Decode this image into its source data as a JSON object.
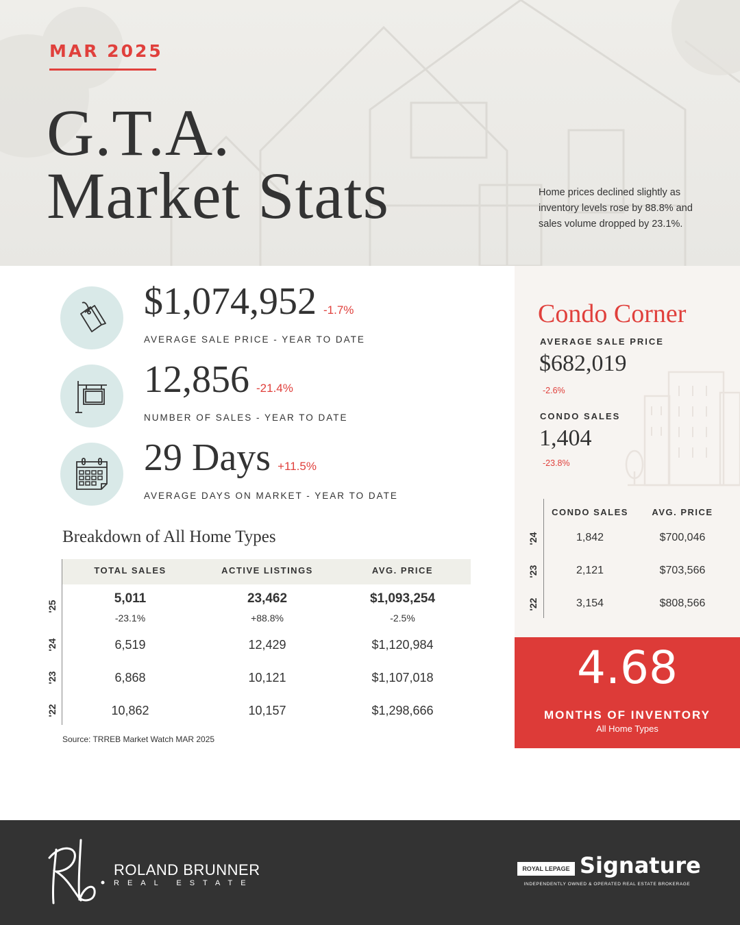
{
  "header": {
    "month": "MAR 2025",
    "title_line1": "G.T.A.",
    "title_line2": "Market Stats",
    "summary": "Home prices declined slightly as inventory levels rose by 88.8% and sales volume dropped by 23.1%."
  },
  "stats": [
    {
      "value": "$1,074,952",
      "change": "-1.7%",
      "label": "AVERAGE SALE PRICE - YEAR TO DATE",
      "icon": "price-tag-icon"
    },
    {
      "value": "12,856",
      "change": "-21.4%",
      "label": "NUMBER OF SALES - YEAR TO DATE",
      "icon": "sale-sign-icon"
    },
    {
      "value": "29 Days",
      "change": "+11.5%",
      "label": "AVERAGE DAYS ON MARKET - YEAR TO DATE",
      "icon": "calendar-icon"
    }
  ],
  "breakdown": {
    "title": "Breakdown of All Home Types",
    "columns": [
      "TOTAL SALES",
      "ACTIVE LISTINGS",
      "AVG. PRICE"
    ],
    "rows": [
      {
        "year": "'25",
        "total_sales": "5,011",
        "total_sales_change": "-23.1%",
        "active_listings": "23,462",
        "active_listings_change": "+88.8%",
        "avg_price": "$1,093,254",
        "avg_price_change": "-2.5%"
      },
      {
        "year": "'24",
        "total_sales": "6,519",
        "active_listings": "12,429",
        "avg_price": "$1,120,984"
      },
      {
        "year": "'23",
        "total_sales": "6,868",
        "active_listings": "10,121",
        "avg_price": "$1,107,018"
      },
      {
        "year": "'22",
        "total_sales": "10,862",
        "active_listings": "10,157",
        "avg_price": "$1,298,666"
      }
    ],
    "source": "Source: TRREB Market Watch MAR 2025"
  },
  "condo": {
    "title": "Condo Corner",
    "avg_price_label": "AVERAGE SALE PRICE",
    "avg_price": "$682,019",
    "avg_price_change": "-2.6%",
    "sales_label": "CONDO SALES",
    "sales": "1,404",
    "sales_change": "-23.8%",
    "columns": [
      "CONDO SALES",
      "AVG. PRICE"
    ],
    "rows": [
      {
        "year": "'24",
        "sales": "1,842",
        "avg_price": "$700,046"
      },
      {
        "year": "'23",
        "sales": "2,121",
        "avg_price": "$703,566"
      },
      {
        "year": "'22",
        "sales": "3,154",
        "avg_price": "$808,566"
      }
    ]
  },
  "inventory": {
    "value": "4.68",
    "label": "MONTHS OF INVENTORY",
    "sublabel": "All Home Types"
  },
  "footer": {
    "agent_monogram": "Rb.",
    "agent_name": "ROLAND BRUNNER",
    "agent_sub": "REAL ESTATE",
    "brokerage_badge": "ROYAL LEPAGE",
    "brokerage_name": "Signature",
    "brokerage_tagline": "INDEPENDENTLY OWNED & OPERATED REAL ESTATE BROKERAGE"
  },
  "colors": {
    "accent": "#e0403c",
    "text": "#333333",
    "icon_bg": "#d9e9e8",
    "condo_bg": "#f7f4f1",
    "footer_bg": "#333333"
  }
}
